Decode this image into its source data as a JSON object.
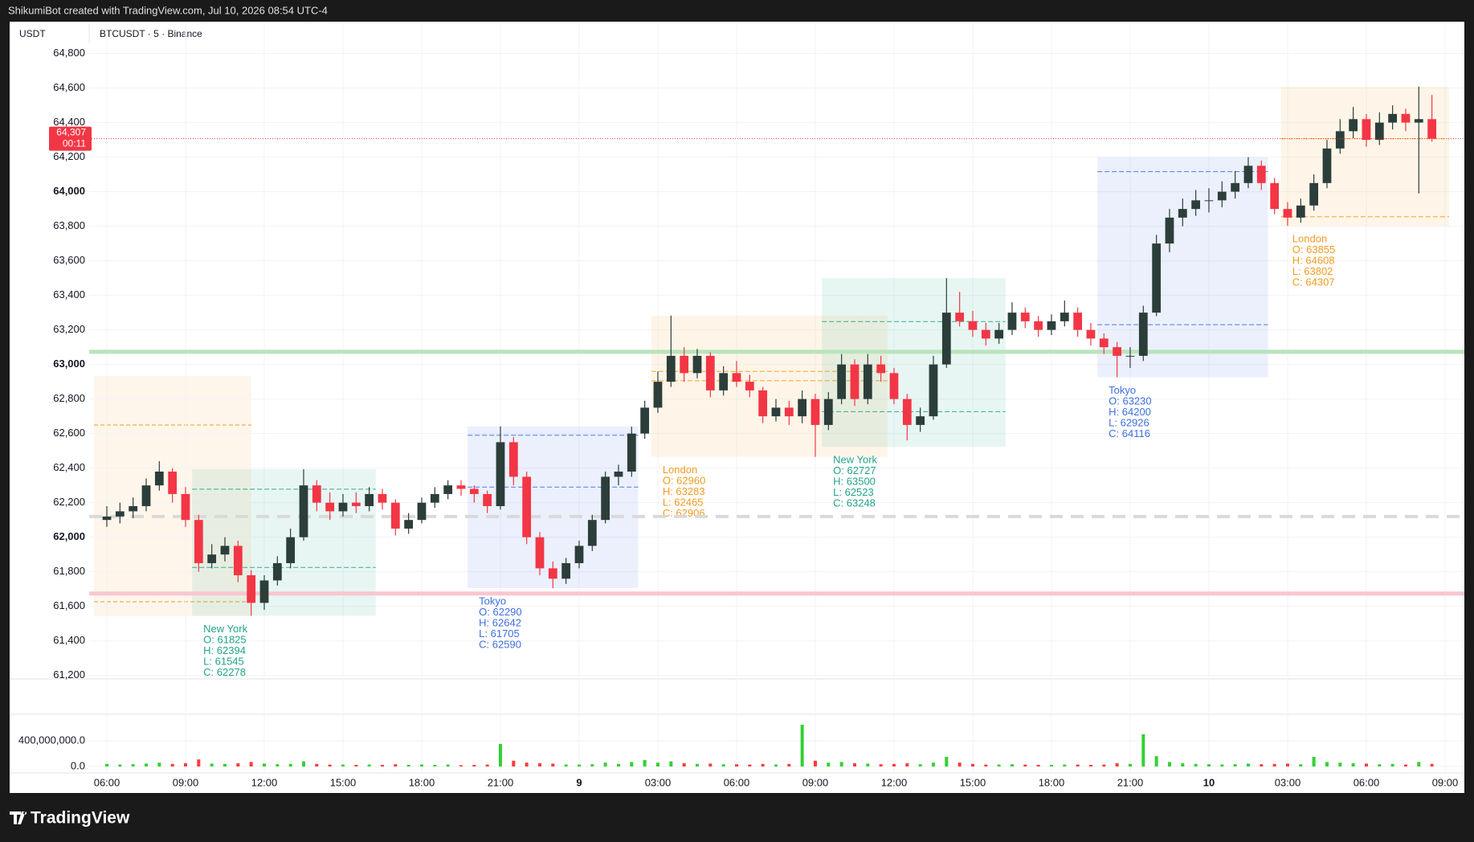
{
  "header": {
    "attribution": "ShikumiBot created with TradingView.com, Jul 10, 2026 08:54 UTC-4",
    "currency": "USDT",
    "symbol": "BTCUSDT · 5 · Binance",
    "brand": "TradingView"
  },
  "chart_data": {
    "type": "candlestick",
    "categories": [
      "06:00",
      null,
      null,
      null,
      null,
      null,
      "09:00",
      null,
      null,
      null,
      null,
      null,
      "12:00",
      null,
      null,
      null,
      null,
      null,
      "15:00",
      null,
      null,
      null,
      null,
      null,
      "18:00",
      null,
      null,
      null,
      null,
      null,
      "21:00",
      null,
      null,
      null,
      null,
      null,
      "9",
      null,
      null,
      null,
      null,
      null,
      "03:00",
      null,
      null,
      null,
      null,
      null,
      "06:00",
      null,
      null,
      null,
      null,
      null,
      "09:00",
      null,
      null,
      null,
      null,
      null,
      "12:00",
      null,
      null,
      null,
      null,
      null,
      "15:00",
      null,
      null,
      null,
      null,
      null,
      "18:00",
      null,
      null,
      null,
      null,
      null,
      "21:00",
      null,
      null,
      null,
      null,
      null,
      "10",
      null,
      null,
      null,
      null,
      null,
      "03:00",
      null,
      null,
      null,
      null,
      null,
      "06:00",
      null,
      null,
      null,
      null,
      null,
      "09:00"
    ],
    "candles": [
      [
        62100,
        62180,
        62060,
        62120
      ],
      [
        62120,
        62200,
        62080,
        62150
      ],
      [
        62150,
        62230,
        62110,
        62180
      ],
      [
        62180,
        62340,
        62150,
        62300
      ],
      [
        62300,
        62440,
        62270,
        62380
      ],
      [
        62380,
        62400,
        62200,
        62250
      ],
      [
        62250,
        62290,
        62060,
        62100
      ],
      [
        62100,
        62130,
        61800,
        61850
      ],
      [
        61850,
        61960,
        61820,
        61900
      ],
      [
        61900,
        62000,
        61860,
        61950
      ],
      [
        61950,
        61980,
        61740,
        61780
      ],
      [
        61780,
        61810,
        61545,
        61620
      ],
      [
        61620,
        61780,
        61580,
        61750
      ],
      [
        61750,
        61890,
        61720,
        61850
      ],
      [
        61850,
        62050,
        61820,
        62000
      ],
      [
        62000,
        62394,
        61980,
        62300
      ],
      [
        62300,
        62330,
        62150,
        62200
      ],
      [
        62200,
        62260,
        62100,
        62150
      ],
      [
        62150,
        62250,
        62120,
        62200
      ],
      [
        62200,
        62260,
        62140,
        62180
      ],
      [
        62180,
        62290,
        62150,
        62250
      ],
      [
        62250,
        62280,
        62160,
        62200
      ],
      [
        62200,
        62220,
        62010,
        62050
      ],
      [
        62050,
        62140,
        62020,
        62100
      ],
      [
        62100,
        62230,
        62080,
        62200
      ],
      [
        62200,
        62290,
        62170,
        62250
      ],
      [
        62250,
        62330,
        62220,
        62300
      ],
      [
        62300,
        62330,
        62240,
        62280
      ],
      [
        62280,
        62300,
        62200,
        62250
      ],
      [
        62250,
        62270,
        62140,
        62180
      ],
      [
        62180,
        62642,
        62160,
        62550
      ],
      [
        62550,
        62580,
        62300,
        62350
      ],
      [
        62350,
        62380,
        61960,
        62000
      ],
      [
        62000,
        62030,
        61780,
        61820
      ],
      [
        61820,
        61860,
        61705,
        61760
      ],
      [
        61760,
        61880,
        61730,
        61850
      ],
      [
        61850,
        61980,
        61820,
        61950
      ],
      [
        61950,
        62130,
        61920,
        62100
      ],
      [
        62100,
        62380,
        62080,
        62350
      ],
      [
        62350,
        62420,
        62300,
        62380
      ],
      [
        62380,
        62640,
        62350,
        62600
      ],
      [
        62600,
        62790,
        62570,
        62750
      ],
      [
        62750,
        62960,
        62720,
        62900
      ],
      [
        62900,
        63283,
        62870,
        63050
      ],
      [
        63050,
        63100,
        62900,
        62950
      ],
      [
        62950,
        63090,
        62920,
        63050
      ],
      [
        63050,
        63070,
        62810,
        62850
      ],
      [
        62850,
        62990,
        62820,
        62950
      ],
      [
        62950,
        63020,
        62870,
        62900
      ],
      [
        62900,
        62940,
        62810,
        62850
      ],
      [
        62850,
        62870,
        62660,
        62700
      ],
      [
        62700,
        62800,
        62670,
        62750
      ],
      [
        62750,
        62790,
        62650,
        62700
      ],
      [
        62700,
        62850,
        62660,
        62800
      ],
      [
        62800,
        62830,
        62465,
        62650
      ],
      [
        62650,
        62840,
        62620,
        62800
      ],
      [
        62800,
        63060,
        62770,
        63000
      ],
      [
        63000,
        63030,
        62760,
        62800
      ],
      [
        62800,
        63060,
        62770,
        63000
      ],
      [
        63000,
        63050,
        62900,
        62950
      ],
      [
        62950,
        62980,
        62770,
        62800
      ],
      [
        62800,
        62830,
        62560,
        62650
      ],
      [
        62650,
        62750,
        62610,
        62700
      ],
      [
        62700,
        63050,
        62680,
        63000
      ],
      [
        63000,
        63500,
        62980,
        63300
      ],
      [
        63300,
        63420,
        63220,
        63250
      ],
      [
        63250,
        63310,
        63160,
        63200
      ],
      [
        63200,
        63240,
        63110,
        63150
      ],
      [
        63150,
        63240,
        63120,
        63200
      ],
      [
        63200,
        63360,
        63170,
        63300
      ],
      [
        63300,
        63330,
        63210,
        63250
      ],
      [
        63250,
        63280,
        63160,
        63200
      ],
      [
        63200,
        63290,
        63170,
        63250
      ],
      [
        63250,
        63370,
        63220,
        63300
      ],
      [
        63300,
        63330,
        63160,
        63200
      ],
      [
        63200,
        63240,
        63110,
        63150
      ],
      [
        63150,
        63180,
        63060,
        63100
      ],
      [
        63100,
        63130,
        62926,
        63050
      ],
      [
        63050,
        63100,
        62980,
        63050
      ],
      [
        63050,
        63340,
        63020,
        63300
      ],
      [
        63300,
        63750,
        63280,
        63700
      ],
      [
        63700,
        63900,
        63650,
        63850
      ],
      [
        63850,
        63960,
        63800,
        63900
      ],
      [
        63900,
        64010,
        63860,
        63950
      ],
      [
        63950,
        64020,
        63880,
        63950
      ],
      [
        63950,
        64060,
        63910,
        64000
      ],
      [
        64000,
        64120,
        63960,
        64050
      ],
      [
        64050,
        64200,
        64020,
        64150
      ],
      [
        64150,
        64180,
        64010,
        64050
      ],
      [
        64050,
        64080,
        63870,
        63900
      ],
      [
        63900,
        63940,
        63802,
        63850
      ],
      [
        63850,
        63960,
        63820,
        63920
      ],
      [
        63920,
        64100,
        63890,
        64050
      ],
      [
        64050,
        64300,
        64020,
        64250
      ],
      [
        64250,
        64420,
        64220,
        64350
      ],
      [
        64350,
        64490,
        64310,
        64420
      ],
      [
        64420,
        64450,
        64260,
        64300
      ],
      [
        64300,
        64460,
        64270,
        64400
      ],
      [
        64400,
        64500,
        64360,
        64450
      ],
      [
        64450,
        64480,
        64350,
        64400
      ],
      [
        64400,
        64608,
        63990,
        64420
      ],
      [
        64420,
        64560,
        64290,
        64307
      ],
      null
    ],
    "up_color": "#2c3e3a",
    "down_color": "#f23645",
    "ylim": [
      61180,
      64970
    ],
    "yticks": [
      {
        "value": 61200,
        "label": "61,200"
      },
      {
        "value": 61400,
        "label": "61,400"
      },
      {
        "value": 61600,
        "label": "61,600"
      },
      {
        "value": 61800,
        "label": "61,800"
      },
      {
        "value": 62000,
        "label": "62,000"
      },
      {
        "value": 62200,
        "label": "62,200"
      },
      {
        "value": 62400,
        "label": "62,400"
      },
      {
        "value": 62600,
        "label": "62,600"
      },
      {
        "value": 62800,
        "label": "62,800"
      },
      {
        "value": 63000,
        "label": "63,000"
      },
      {
        "value": 63200,
        "label": "63,200"
      },
      {
        "value": 63400,
        "label": "63,400"
      },
      {
        "value": 63600,
        "label": "63,600"
      },
      {
        "value": 63800,
        "label": "63,800"
      },
      {
        "value": 64000,
        "label": "64,000"
      },
      {
        "value": 64200,
        "label": "64,200"
      },
      {
        "value": 64400,
        "label": "64,400"
      },
      {
        "value": 64600,
        "label": "64,600"
      },
      {
        "value": 64800,
        "label": "64,800"
      }
    ],
    "grid": true,
    "last_price": {
      "value": 64307,
      "label": "64,307"
    },
    "countdown": "00:11",
    "last_price_color": "#f23645",
    "levels": [
      {
        "value": 63073,
        "color": "#b9e4bb",
        "style": "solid"
      },
      {
        "value": 61674,
        "color": "#f9c6cf",
        "style": "solid"
      },
      {
        "value": 62120,
        "color": "#d9d9d9",
        "style": "dashed"
      }
    ],
    "sessions": [
      {
        "name": "New York",
        "color": "#22a38a",
        "values": [
          61825,
          62394,
          61545,
          62278
        ],
        "value_labels": [
          "O: 61825",
          "H: 62394",
          "L: 61545",
          "C: 62278"
        ]
      },
      {
        "name": "Tokyo",
        "color": "#3d6fe0",
        "values": [
          62290,
          62642,
          61705,
          62590
        ],
        "value_labels": [
          "O: 62290",
          "H: 62642",
          "L: 61705",
          "C: 62590"
        ]
      },
      {
        "name": "London",
        "color": "#f29a1f",
        "values": [
          62960,
          63283,
          62465,
          62906
        ],
        "value_labels": [
          "O: 62960",
          "H: 63283",
          "L: 62465",
          "C: 62906"
        ]
      },
      {
        "name": "New York",
        "color": "#22a38a",
        "values": [
          62727,
          63500,
          62523,
          63248
        ],
        "value_labels": [
          "O: 62727",
          "H: 63500",
          "L: 62523",
          "C: 63248"
        ]
      },
      {
        "name": "Tokyo",
        "color": "#3d6fe0",
        "values": [
          63230,
          64200,
          62926,
          64116
        ],
        "value_labels": [
          "O: 63230",
          "H: 64200",
          "L: 62926",
          "C: 64116"
        ]
      },
      {
        "name": "London",
        "color": "#f29a1f",
        "values": [
          63855,
          64608,
          63802,
          64307
        ],
        "value_labels": [
          "O: 63855",
          "H: 64608",
          "L: 63802",
          "C: 64307"
        ]
      }
    ],
    "volume": [
      40000000,
      30000000,
      35000000,
      45000000,
      60000000,
      40000000,
      50000000,
      110000000,
      45000000,
      40000000,
      50000000,
      70000000,
      45000000,
      35000000,
      40000000,
      80000000,
      40000000,
      30000000,
      30000000,
      25000000,
      30000000,
      25000000,
      35000000,
      25000000,
      30000000,
      25000000,
      30000000,
      20000000,
      25000000,
      30000000,
      350000000,
      90000000,
      60000000,
      50000000,
      45000000,
      30000000,
      30000000,
      35000000,
      60000000,
      40000000,
      70000000,
      100000000,
      60000000,
      80000000,
      50000000,
      40000000,
      45000000,
      35000000,
      35000000,
      30000000,
      40000000,
      30000000,
      40000000,
      650000000,
      90000000,
      60000000,
      70000000,
      50000000,
      45000000,
      35000000,
      40000000,
      50000000,
      35000000,
      60000000,
      150000000,
      60000000,
      40000000,
      30000000,
      30000000,
      35000000,
      30000000,
      25000000,
      25000000,
      30000000,
      30000000,
      25000000,
      30000000,
      50000000,
      40000000,
      500000000,
      160000000,
      70000000,
      50000000,
      40000000,
      35000000,
      30000000,
      35000000,
      45000000,
      35000000,
      40000000,
      45000000,
      35000000,
      150000000,
      70000000,
      60000000,
      50000000,
      45000000,
      35000000,
      40000000,
      30000000,
      70000000,
      40000000,
      null
    ],
    "volume_ylim": [
      -100000000,
      812500000
    ],
    "volume_yticks": [
      {
        "value": 0,
        "label": "0.0"
      },
      {
        "value": 400000000,
        "label": "400,000,000.0"
      }
    ]
  }
}
